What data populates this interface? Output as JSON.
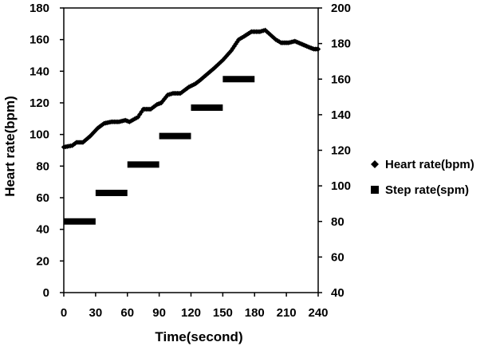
{
  "chart_data": {
    "type": "line",
    "xlabel": "Time(second)",
    "ylabel": "Heart rate(bpm)",
    "xlim": [
      0,
      240
    ],
    "ylim": [
      0,
      180
    ],
    "y2lim": [
      40,
      200
    ],
    "x_ticks": [
      "0",
      "30",
      "60",
      "90",
      "120",
      "150",
      "180",
      "210",
      "240"
    ],
    "y_ticks": [
      "0",
      "20",
      "40",
      "60",
      "80",
      "100",
      "120",
      "140",
      "160",
      "180"
    ],
    "y2_ticks": [
      "40",
      "60",
      "80",
      "100",
      "120",
      "140",
      "160",
      "180",
      "200"
    ],
    "legend_position": "right",
    "grid": false,
    "series": [
      {
        "name": "Heart rate(bpm)",
        "axis": "left",
        "marker": "diamond",
        "color": "#000000",
        "points": [
          [
            0,
            92
          ],
          [
            8,
            93
          ],
          [
            12,
            95
          ],
          [
            18,
            95
          ],
          [
            25,
            99
          ],
          [
            32,
            104
          ],
          [
            38,
            107
          ],
          [
            45,
            108
          ],
          [
            52,
            108
          ],
          [
            58,
            109
          ],
          [
            62,
            108
          ],
          [
            70,
            111
          ],
          [
            75,
            116
          ],
          [
            82,
            116
          ],
          [
            88,
            119
          ],
          [
            92,
            120
          ],
          [
            98,
            125
          ],
          [
            103,
            126
          ],
          [
            110,
            126
          ],
          [
            118,
            130
          ],
          [
            124,
            132
          ],
          [
            128,
            134
          ],
          [
            135,
            138
          ],
          [
            142,
            142
          ],
          [
            150,
            147
          ],
          [
            158,
            153
          ],
          [
            165,
            160
          ],
          [
            170,
            162
          ],
          [
            177,
            165
          ],
          [
            185,
            165
          ],
          [
            190,
            166
          ],
          [
            195,
            163
          ],
          [
            200,
            160
          ],
          [
            205,
            158
          ],
          [
            212,
            158
          ],
          [
            218,
            159
          ],
          [
            225,
            157
          ],
          [
            232,
            155
          ],
          [
            236,
            154
          ],
          [
            240,
            154
          ]
        ]
      },
      {
        "name": "Step rate(spm)",
        "axis": "right",
        "marker": "square",
        "color": "#000000",
        "segments": [
          {
            "x0": 0,
            "x1": 30,
            "value": 80
          },
          {
            "x0": 30,
            "x1": 60,
            "value": 96
          },
          {
            "x0": 60,
            "x1": 90,
            "value": 112
          },
          {
            "x0": 90,
            "x1": 120,
            "value": 128
          },
          {
            "x0": 120,
            "x1": 150,
            "value": 144
          },
          {
            "x0": 150,
            "x1": 180,
            "value": 160
          }
        ]
      }
    ]
  }
}
